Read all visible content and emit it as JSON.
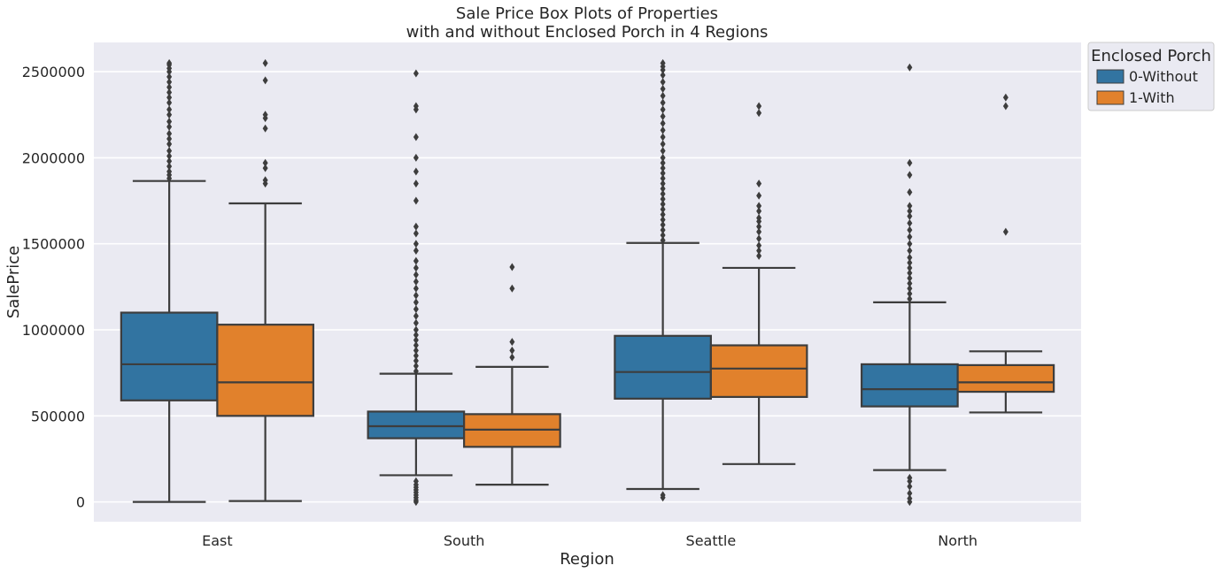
{
  "chart_data": {
    "type": "box",
    "title": [
      "Sale Price Box Plots of Properties",
      "with and without Enclosed Porch in 4 Regions"
    ],
    "xlabel": "Region",
    "ylabel": "SalePrice",
    "categories": [
      "East",
      "South",
      "Seattle",
      "North"
    ],
    "ylim": [
      -115000,
      2670000
    ],
    "yticks": [
      0,
      500000,
      1000000,
      1500000,
      2000000,
      2500000
    ],
    "ytick_labels": [
      "0",
      "500000",
      "1000000",
      "1500000",
      "2000000",
      "2500000"
    ],
    "grid": true,
    "legend": {
      "title": "Enclosed Porch",
      "position": "outside-top-right"
    },
    "series": [
      {
        "name": "0-Without",
        "color": "#3274a1",
        "boxes": [
          {
            "category": "East",
            "whislo": 0,
            "q1": 590000,
            "med": 800000,
            "q3": 1100000,
            "whishi": 1865000,
            "fliers": [
              1880000,
              1900000,
              1920000,
              1950000,
              1980000,
              2010000,
              2040000,
              2080000,
              2110000,
              2140000,
              2180000,
              2210000,
              2250000,
              2280000,
              2320000,
              2350000,
              2380000,
              2410000,
              2440000,
              2470000,
              2500000,
              2520000,
              2540000,
              2550000
            ]
          },
          {
            "category": "South",
            "whislo": 155000,
            "q1": 370000,
            "med": 440000,
            "q3": 525000,
            "whishi": 745000,
            "fliers": [
              0,
              10000,
              25000,
              40000,
              55000,
              70000,
              85000,
              100000,
              120000,
              760000,
              790000,
              820000,
              850000,
              880000,
              910000,
              940000,
              970000,
              1000000,
              1040000,
              1080000,
              1120000,
              1160000,
              1200000,
              1240000,
              1280000,
              1320000,
              1360000,
              1400000,
              1460000,
              1500000,
              1560000,
              1600000,
              1750000,
              1850000,
              1920000,
              2000000,
              2120000,
              2280000,
              2300000,
              2490000
            ]
          },
          {
            "category": "Seattle",
            "whislo": 75000,
            "q1": 600000,
            "med": 755000,
            "q3": 965000,
            "whishi": 1505000,
            "fliers": [
              25000,
              40000,
              1520000,
              1550000,
              1580000,
              1610000,
              1640000,
              1670000,
              1700000,
              1730000,
              1760000,
              1790000,
              1820000,
              1850000,
              1880000,
              1910000,
              1940000,
              1970000,
              2000000,
              2040000,
              2080000,
              2120000,
              2160000,
              2200000,
              2240000,
              2280000,
              2320000,
              2360000,
              2400000,
              2440000,
              2480000,
              2510000,
              2530000,
              2550000
            ]
          },
          {
            "category": "North",
            "whislo": 185000,
            "q1": 555000,
            "med": 655000,
            "q3": 800000,
            "whishi": 1160000,
            "fliers": [
              0,
              20000,
              50000,
              90000,
              120000,
              140000,
              1180000,
              1210000,
              1240000,
              1270000,
              1300000,
              1330000,
              1360000,
              1390000,
              1420000,
              1460000,
              1500000,
              1540000,
              1580000,
              1620000,
              1660000,
              1690000,
              1720000,
              1800000,
              1900000,
              1970000,
              2525000
            ]
          }
        ]
      },
      {
        "name": "1-With",
        "color": "#e1812c",
        "boxes": [
          {
            "category": "East",
            "whislo": 5000,
            "q1": 500000,
            "med": 695000,
            "q3": 1030000,
            "whishi": 1735000,
            "fliers": [
              1850000,
              1870000,
              1940000,
              1970000,
              2170000,
              2230000,
              2250000,
              2450000,
              2550000
            ]
          },
          {
            "category": "South",
            "whislo": 100000,
            "q1": 320000,
            "med": 420000,
            "q3": 510000,
            "whishi": 785000,
            "fliers": [
              840000,
              880000,
              930000,
              1240000,
              1365000
            ]
          },
          {
            "category": "Seattle",
            "whislo": 220000,
            "q1": 610000,
            "med": 775000,
            "q3": 910000,
            "whishi": 1360000,
            "fliers": [
              1430000,
              1460000,
              1490000,
              1530000,
              1570000,
              1600000,
              1630000,
              1650000,
              1690000,
              1720000,
              1780000,
              1850000,
              2260000,
              2300000
            ]
          },
          {
            "category": "North",
            "whislo": 520000,
            "q1": 640000,
            "med": 695000,
            "q3": 795000,
            "whishi": 875000,
            "fliers": [
              1570000,
              2300000,
              2350000
            ]
          }
        ]
      }
    ]
  },
  "style": {
    "background": "#ffffff",
    "plot_background": "#eaeaf2",
    "grid_color": "#ffffff",
    "line_color": "#3d3d3d",
    "text_color": "#262626"
  }
}
